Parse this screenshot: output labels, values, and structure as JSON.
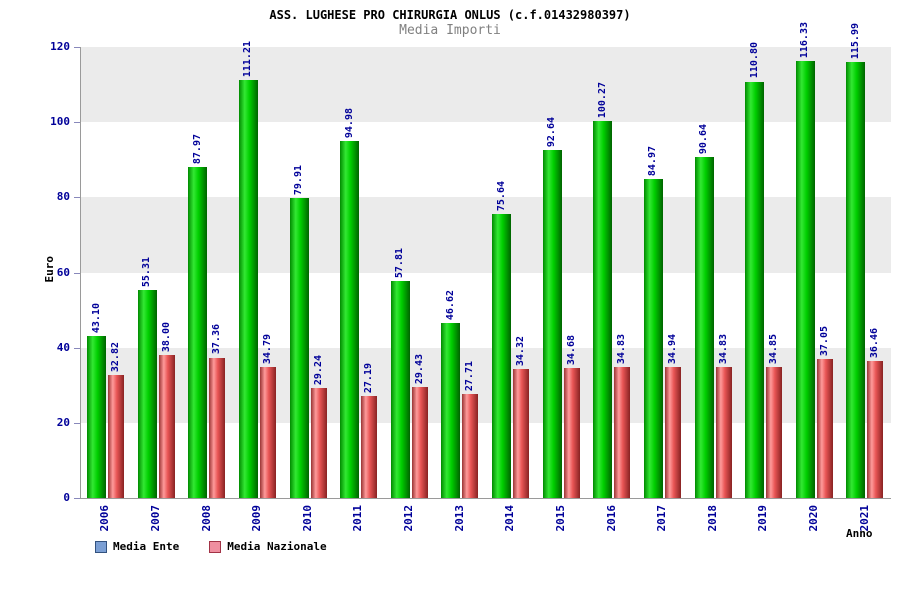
{
  "header": {
    "title": "ASS. LUGHESE PRO CHIRURGIA ONLUS (c.f.01432980397)",
    "subtitle": "Media Importi"
  },
  "chart_data": {
    "type": "bar",
    "title": "ASS. LUGHESE PRO CHIRURGIA ONLUS (c.f.01432980397)",
    "subtitle": "Media Importi",
    "xlabel": "Anno",
    "ylabel": "Euro",
    "ylim": [
      0,
      120
    ],
    "yticks": [
      0,
      20,
      40,
      60,
      80,
      100,
      120
    ],
    "grid": "alternating horizontal gray bands every 20 units",
    "legend_position": "bottom-left",
    "axis_text_color": "#000099",
    "value_label_color": "#000099",
    "categories": [
      "2006",
      "2007",
      "2008",
      "2009",
      "2010",
      "2011",
      "2012",
      "2013",
      "2014",
      "2015",
      "2016",
      "2017",
      "2018",
      "2019",
      "2020",
      "2021"
    ],
    "series": [
      {
        "name": "Media Ente",
        "bar_color": "#00cc00",
        "legend_swatch_color": "#7b9fd4",
        "legend_swatch_border": "#33527f",
        "values": [
          43.1,
          55.31,
          87.97,
          111.21,
          79.91,
          94.98,
          57.81,
          46.62,
          75.64,
          92.64,
          100.27,
          84.97,
          90.64,
          110.8,
          116.33,
          115.99
        ]
      },
      {
        "name": "Media Nazionale",
        "bar_color": "#e85555",
        "legend_swatch_color": "#ef8fa0",
        "legend_swatch_border": "#a23346",
        "values": [
          32.82,
          38.0,
          37.36,
          34.79,
          29.24,
          27.19,
          29.43,
          27.71,
          34.32,
          34.68,
          34.83,
          34.94,
          34.83,
          34.85,
          37.05,
          36.46
        ]
      }
    ]
  }
}
